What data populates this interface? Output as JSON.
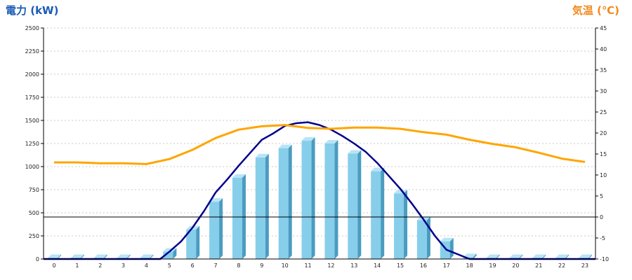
{
  "chart_data": {
    "type": "bar",
    "left_axis_title": "電力 (kW)",
    "right_axis_title": "気温 (℃)",
    "categories": [
      "0",
      "1",
      "2",
      "3",
      "4",
      "5",
      "6",
      "7",
      "8",
      "9",
      "10",
      "11",
      "12",
      "13",
      "14",
      "15",
      "16",
      "17",
      "18",
      "19",
      "20",
      "21",
      "22",
      "23"
    ],
    "left_ticks": [
      "0",
      "250",
      "500",
      "750",
      "1000",
      "1250",
      "1500",
      "1750",
      "2000",
      "2250",
      "2500"
    ],
    "right_ticks": [
      "-10",
      "-5",
      "0",
      "5",
      "10",
      "15",
      "20",
      "25",
      "30",
      "35",
      "40",
      "45"
    ],
    "ylim_left": [
      0,
      2500
    ],
    "ylim_right": [
      -10,
      45
    ],
    "grid": true,
    "series": [
      {
        "type": "bar",
        "axis": "left",
        "values": [
          0,
          0,
          0,
          0,
          0,
          80,
          320,
          620,
          880,
          1100,
          1200,
          1280,
          1250,
          1140,
          950,
          710,
          420,
          190,
          20,
          0,
          0,
          0,
          0,
          0
        ]
      },
      {
        "type": "line",
        "axis": "left",
        "x": [
          4.6,
          5,
          5.5,
          6,
          6.5,
          7,
          7.5,
          8,
          8.5,
          9,
          9.5,
          10,
          10.5,
          11,
          11.5,
          12,
          12.5,
          13,
          13.5,
          14,
          14.5,
          15,
          15.5,
          16,
          16.5,
          17,
          17.5,
          18
        ],
        "values": [
          0,
          80,
          190,
          340,
          520,
          720,
          860,
          1010,
          1150,
          1290,
          1360,
          1440,
          1470,
          1480,
          1450,
          1400,
          1330,
          1250,
          1160,
          1040,
          900,
          760,
          600,
          430,
          250,
          100,
          50,
          0
        ]
      },
      {
        "type": "line",
        "axis": "right",
        "values": [
          13.0,
          13.0,
          12.8,
          12.8,
          12.6,
          13.8,
          16.0,
          18.8,
          20.8,
          21.6,
          21.9,
          21.2,
          21.0,
          21.3,
          21.3,
          21.0,
          20.2,
          19.6,
          18.4,
          17.4,
          16.6,
          15.3,
          13.9,
          13.1
        ]
      }
    ],
    "colors": {
      "bar": "#87ceeb",
      "bar_side": "#4a9cc0",
      "bar_top": "#b8e4f6",
      "power_line": "#00008b",
      "temp_line": "#ffa500",
      "left_title": "#1a5bb5",
      "right_title": "#f08a1c"
    }
  }
}
